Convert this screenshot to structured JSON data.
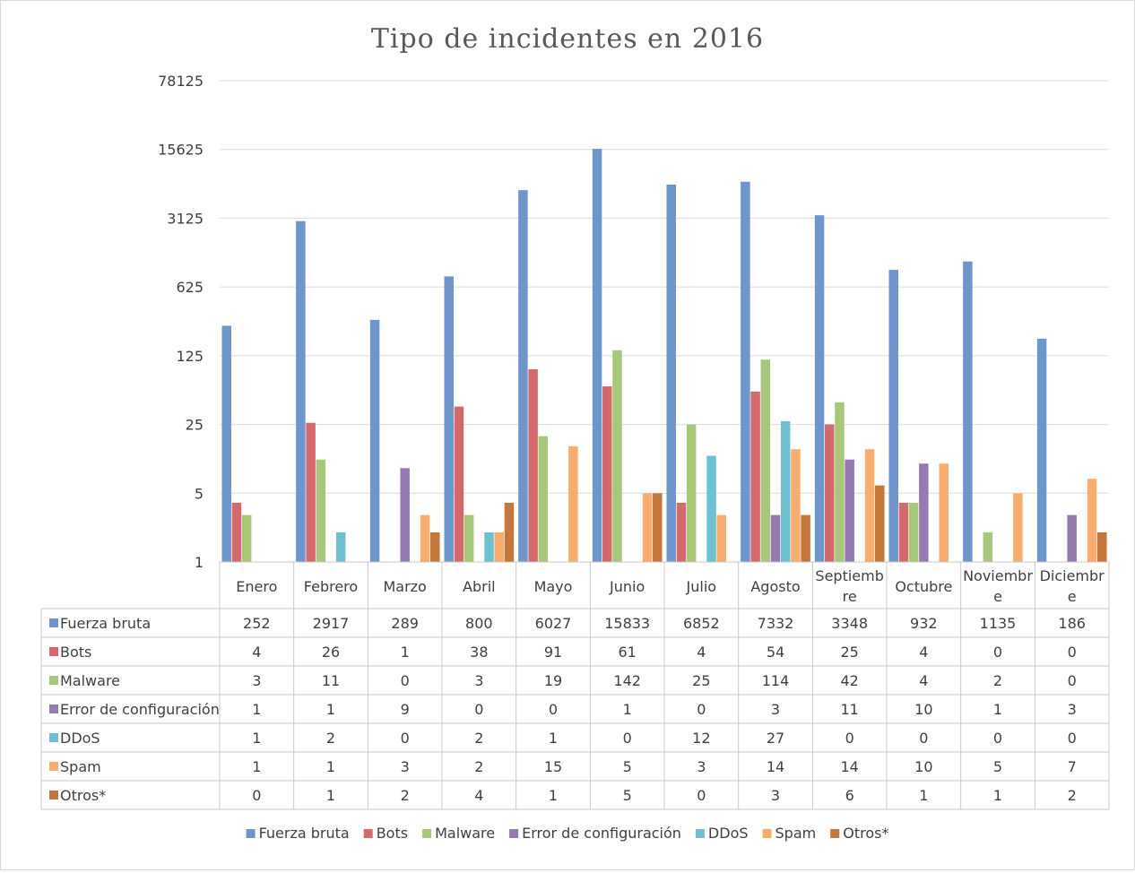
{
  "colors": {
    "Fuerza bruta": "#6f95cd",
    "Bots": "#d3696a",
    "Malware": "#a9c77a",
    "Error de configuración": "#957ab2",
    "DDoS": "#6cc0d1",
    "Spam": "#f8ad6c",
    "Otros*": "#c5763a",
    "grid": "#dcdcdc",
    "table_border": "#c8c8c8"
  },
  "chart_data": {
    "type": "bar",
    "title": "Tipo de incidentes en 2016",
    "scale": "log",
    "log_base": 5,
    "ylim": [
      1,
      78125
    ],
    "yticks": [
      "1",
      "5",
      "25",
      "125",
      "625",
      "3125",
      "15625",
      "78125"
    ],
    "categories": [
      [
        "Enero"
      ],
      [
        "Febrero"
      ],
      [
        "Marzo"
      ],
      [
        "Abril"
      ],
      [
        "Mayo"
      ],
      [
        "Junio"
      ],
      [
        "Julio"
      ],
      [
        "Agosto"
      ],
      [
        "Septiemb",
        "re"
      ],
      [
        "Octubre"
      ],
      [
        "Noviembr",
        "e"
      ],
      [
        "Diciembr",
        "e"
      ]
    ],
    "series": [
      {
        "name": "Fuerza bruta",
        "values": [
          252,
          2917,
          289,
          800,
          6027,
          15833,
          6852,
          7332,
          3348,
          932,
          1135,
          186
        ]
      },
      {
        "name": "Bots",
        "values": [
          4,
          26,
          1,
          38,
          91,
          61,
          4,
          54,
          25,
          4,
          0,
          0
        ]
      },
      {
        "name": "Malware",
        "values": [
          3,
          11,
          0,
          3,
          19,
          142,
          25,
          114,
          42,
          4,
          2,
          0
        ]
      },
      {
        "name": "Error de configuración",
        "values": [
          1,
          1,
          9,
          0,
          0,
          1,
          0,
          3,
          11,
          10,
          1,
          3
        ]
      },
      {
        "name": "DDoS",
        "values": [
          1,
          2,
          0,
          2,
          1,
          0,
          12,
          27,
          0,
          0,
          0,
          0
        ]
      },
      {
        "name": "Spam",
        "values": [
          1,
          1,
          3,
          2,
          15,
          5,
          3,
          14,
          14,
          10,
          5,
          7
        ]
      },
      {
        "name": "Otros*",
        "values": [
          0,
          1,
          2,
          4,
          1,
          5,
          0,
          3,
          6,
          1,
          1,
          2
        ]
      }
    ],
    "grid": true,
    "legend_position": "bottom",
    "data_table": true
  }
}
